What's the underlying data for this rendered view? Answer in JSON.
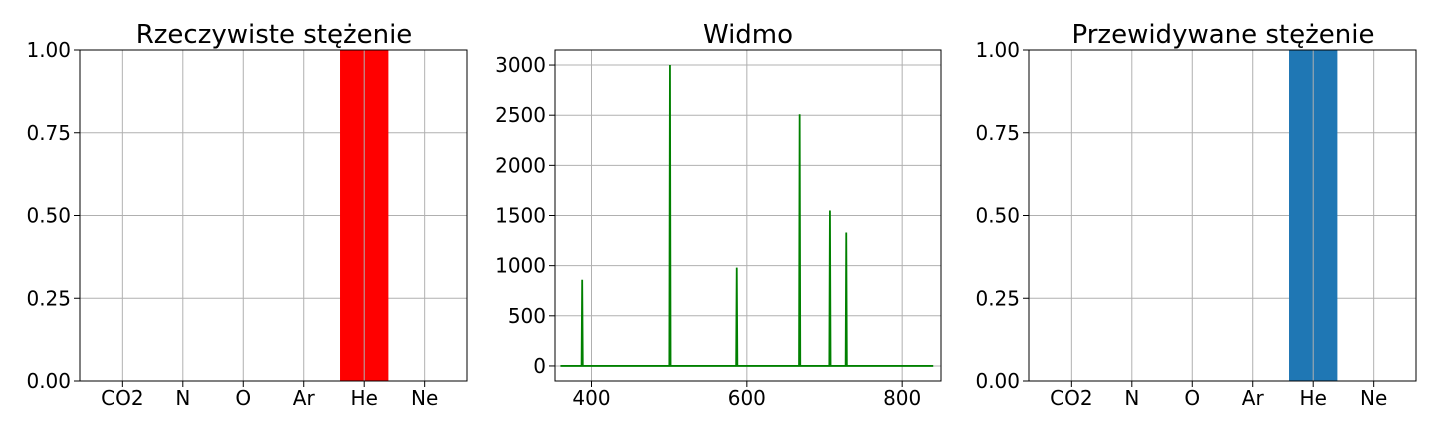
{
  "chart_data": [
    {
      "type": "bar",
      "title": "Rzeczywiste stężenie",
      "xlabel": "",
      "ylabel": "",
      "categories": [
        "CO2",
        "N",
        "O",
        "Ar",
        "He",
        "Ne"
      ],
      "values": [
        0,
        0,
        0,
        0,
        1.0,
        0
      ],
      "ylim": [
        0,
        1.0
      ],
      "yticks": [
        "0.00",
        "0.25",
        "0.50",
        "0.75",
        "1.00"
      ],
      "grid": true,
      "color": "#ff0000"
    },
    {
      "type": "line",
      "title": "Widmo",
      "xlabel": "",
      "ylabel": "",
      "x_range": [
        360,
        840
      ],
      "xlim": [
        353,
        850
      ],
      "ylim": [
        -150,
        3150
      ],
      "xticks": [
        "400",
        "600",
        "800"
      ],
      "yticks": [
        "0",
        "500",
        "1000",
        "1500",
        "2000",
        "2500",
        "3000"
      ],
      "peaks": [
        {
          "x": 388,
          "y": 860
        },
        {
          "x": 501,
          "y": 3000
        },
        {
          "x": 587,
          "y": 980
        },
        {
          "x": 668,
          "y": 2510
        },
        {
          "x": 707,
          "y": 1550
        },
        {
          "x": 728,
          "y": 1330
        }
      ],
      "grid": true,
      "color": "#008000"
    },
    {
      "type": "bar",
      "title": "Przewidywane stężenie",
      "xlabel": "",
      "ylabel": "",
      "categories": [
        "CO2",
        "N",
        "O",
        "Ar",
        "He",
        "Ne"
      ],
      "values": [
        0,
        0,
        0,
        0,
        1.0,
        0
      ],
      "ylim": [
        0,
        1.0
      ],
      "yticks": [
        "0.00",
        "0.25",
        "0.50",
        "0.75",
        "1.00"
      ],
      "grid": true,
      "color": "#1f77b4"
    }
  ]
}
